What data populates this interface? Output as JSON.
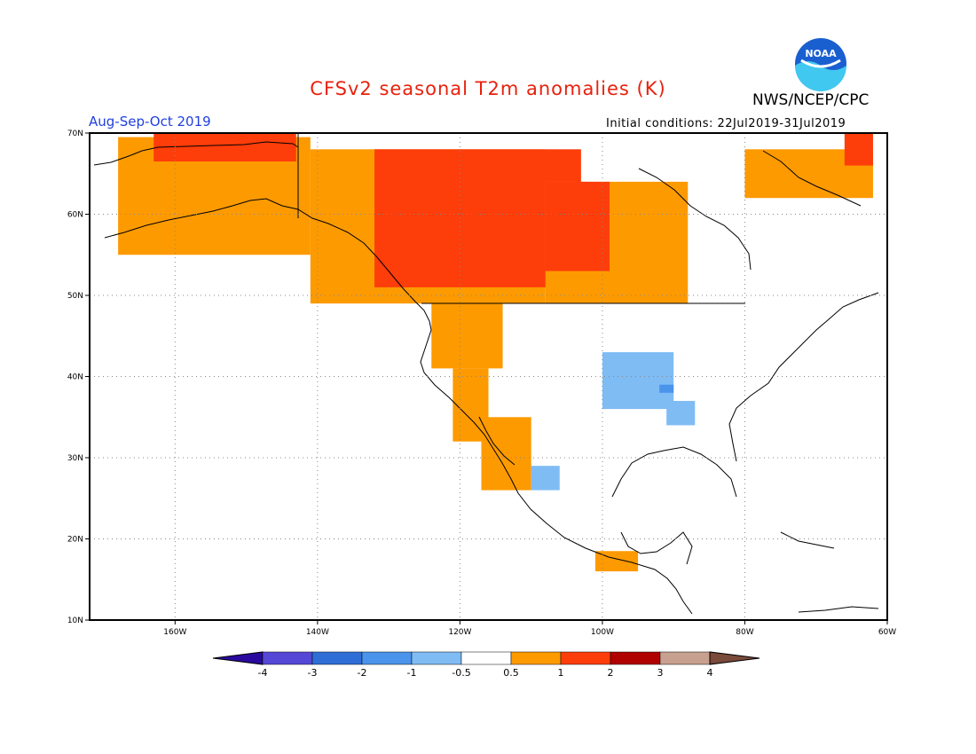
{
  "header": {
    "title": "CFSv2 seasonal T2m anomalies (K)",
    "agency": "NWS/NCEP/CPC",
    "season": "Aug-Sep-Oct 2019",
    "initial_conditions": "Initial conditions: 22Jul2019-31Jul2019"
  },
  "logo": {
    "text": "NOAA",
    "icon": "noaa-logo"
  },
  "map": {
    "lon_range": [
      -172,
      -60
    ],
    "lat_range": [
      10,
      70
    ],
    "lon_ticks": [
      "160W",
      "140W",
      "120W",
      "100W",
      "80W",
      "60W"
    ],
    "lat_ticks": [
      "10N",
      "20N",
      "30N",
      "40N",
      "50N",
      "60N",
      "70N"
    ],
    "grid": "dotted",
    "colors": {
      "neg_0_5_to_1": "#80bcf4",
      "neg_1_to_2": "#4a94ec",
      "pos_0_5_to_1": "#fd9a00",
      "pos_1_to_2": "#fd3d0a",
      "pos_2_to_3": "#b00000"
    },
    "regions": [
      {
        "class": "pos_0_5_to_1",
        "area": "Alaska",
        "lon": [
          -168,
          -141
        ],
        "lat": [
          55,
          69.5
        ]
      },
      {
        "class": "pos_1_to_2",
        "area": "Northern Alaska coast",
        "lon": [
          -163,
          -143
        ],
        "lat": [
          66.5,
          70
        ]
      },
      {
        "class": "pos_0_5_to_1",
        "area": "Western Canada",
        "lon": [
          -141,
          -108
        ],
        "lat": [
          49,
          68
        ]
      },
      {
        "class": "pos_1_to_2",
        "area": "Yukon/NWT/Prairies",
        "lon": [
          -132,
          -103
        ],
        "lat": [
          51,
          68
        ]
      },
      {
        "class": "pos_0_5_to_1",
        "area": "Central Canada",
        "lon": [
          -108,
          -88
        ],
        "lat": [
          49,
          64
        ]
      },
      {
        "class": "pos_1_to_2",
        "area": "Saskatchewan/Manitoba",
        "lon": [
          -108,
          -99
        ],
        "lat": [
          53,
          64
        ]
      },
      {
        "class": "pos_0_5_to_1",
        "area": "US Pacific Northwest",
        "lon": [
          -124,
          -114
        ],
        "lat": [
          41,
          49
        ]
      },
      {
        "class": "pos_0_5_to_1",
        "area": "California coast",
        "lon": [
          -121,
          -116
        ],
        "lat": [
          32,
          41
        ]
      },
      {
        "class": "pos_0_5_to_1",
        "area": "Baja California",
        "lon": [
          -117,
          -110
        ],
        "lat": [
          26,
          35
        ]
      },
      {
        "class": "pos_0_5_to_1",
        "area": "Baffin Island",
        "lon": [
          -80,
          -62
        ],
        "lat": [
          62,
          68
        ]
      },
      {
        "class": "pos_1_to_2",
        "area": "Greenland edge",
        "lon": [
          -66,
          -62
        ],
        "lat": [
          66,
          70
        ]
      },
      {
        "class": "pos_0_5_to_1",
        "area": "Southern Mexico",
        "lon": [
          -101,
          -95
        ],
        "lat": [
          16,
          18.5
        ]
      },
      {
        "class": "neg_0_5_to_1",
        "area": "Central Plains",
        "lon": [
          -100,
          -90
        ],
        "lat": [
          36,
          43
        ]
      },
      {
        "class": "neg_0_5_to_1",
        "area": "Mid-Mississippi",
        "lon": [
          -91,
          -87
        ],
        "lat": [
          34,
          37
        ]
      },
      {
        "class": "neg_1_to_2",
        "area": "Missouri",
        "lon": [
          -92,
          -90
        ],
        "lat": [
          38,
          39
        ]
      },
      {
        "class": "neg_0_5_to_1",
        "area": "Northwest Mexico",
        "lon": [
          -110,
          -106
        ],
        "lat": [
          26,
          29
        ]
      }
    ]
  },
  "colorbar": {
    "labels": [
      "-4",
      "-3",
      "-2",
      "-1",
      "-0.5",
      "0.5",
      "1",
      "2",
      "3",
      "4"
    ],
    "colors": [
      "#2a0a9e",
      "#5548d6",
      "#2f6ed6",
      "#4a94ec",
      "#80bcf4",
      "#ffffff",
      "#fd9a00",
      "#fd3d0a",
      "#b00000",
      "#c8a090",
      "#7a4a3a"
    ]
  }
}
